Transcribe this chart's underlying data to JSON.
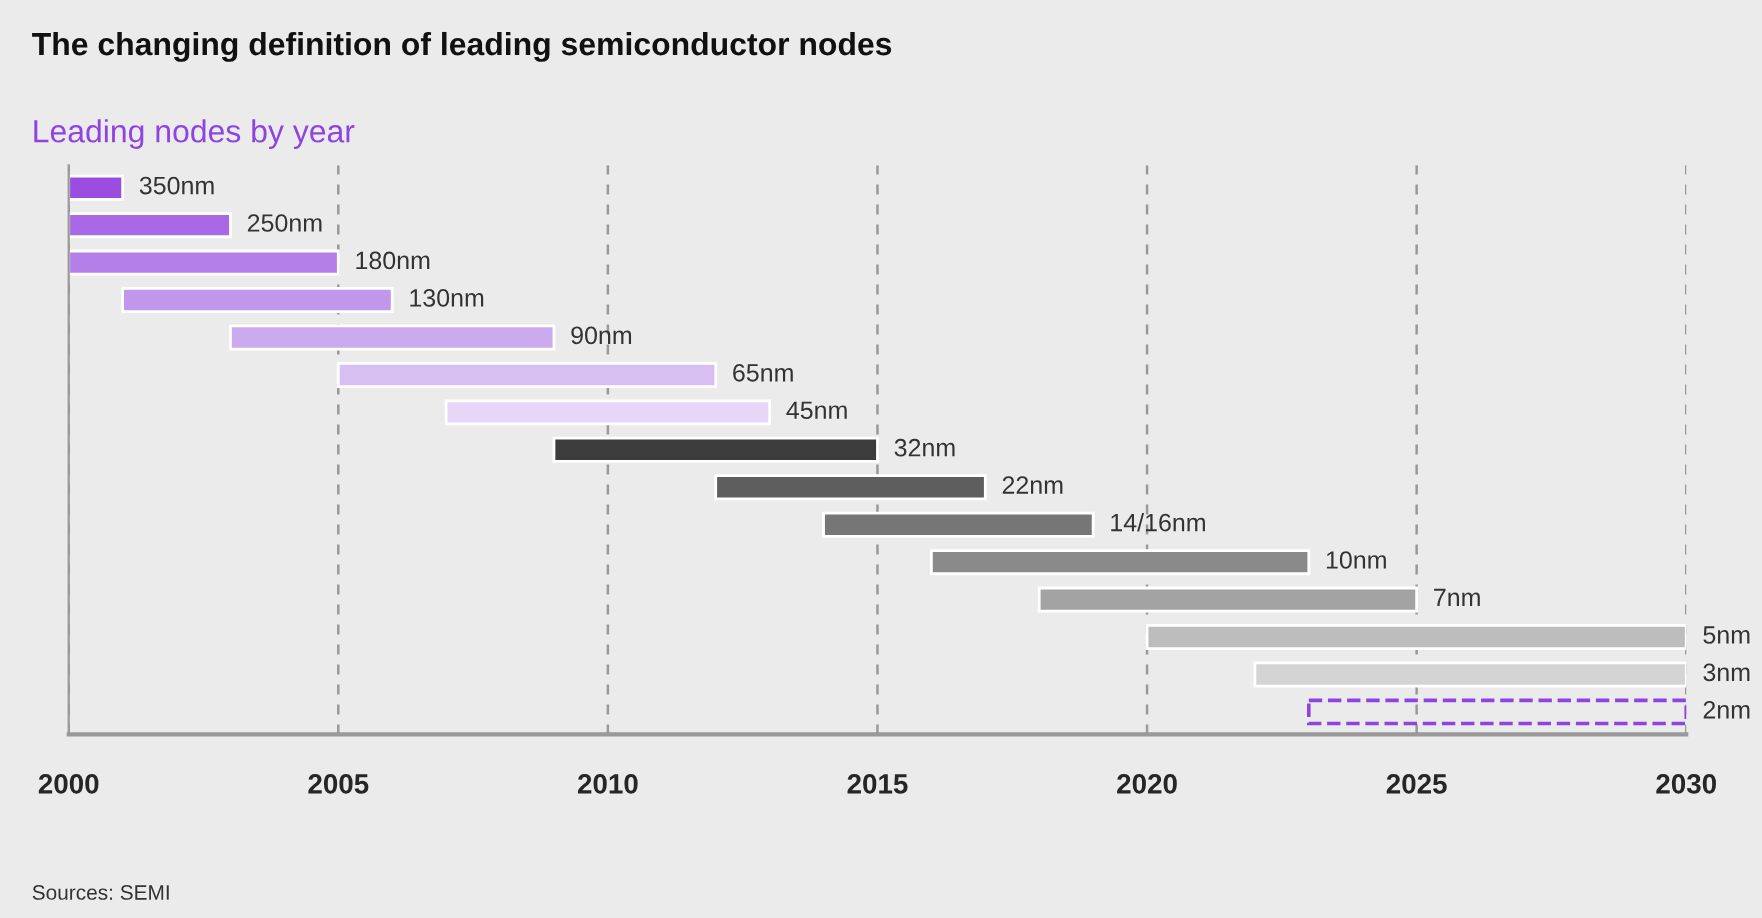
{
  "chart_data": {
    "type": "bar",
    "orientation": "horizontal",
    "title": "The changing definition of leading semiconductor nodes",
    "subtitle": "Leading nodes by year",
    "categories": [
      "350nm",
      "250nm",
      "180nm",
      "130nm",
      "90nm",
      "65nm",
      "45nm",
      "32nm",
      "22nm",
      "14/16nm",
      "10nm",
      "7nm",
      "5nm",
      "3nm",
      "2nm"
    ],
    "series": [
      {
        "base": [
          2000,
          2000,
          2000,
          2001,
          2003,
          2005,
          2007,
          2009,
          2012,
          2014,
          2016,
          2018,
          2020,
          2022,
          null
        ],
        "values": [
          1,
          3,
          5,
          5,
          6,
          7,
          6,
          6,
          5,
          5,
          7,
          7,
          10,
          8,
          null
        ],
        "colors": [
          "#9b4de0",
          "#a968e6",
          "#b57fe9",
          "#c197ec",
          "#ccaaf0",
          "#d8bff3",
          "#e6d6f7",
          "#3c3c3c",
          "#5e5e5e",
          "#767676",
          "#8a8a8a",
          "#a3a3a3",
          "#bdbdbd",
          "#d4d4d4",
          "#8e44e0"
        ]
      },
      {
        "base": [
          null,
          null,
          null,
          null,
          null,
          null,
          null,
          null,
          null,
          null,
          null,
          null,
          null,
          null,
          2023
        ],
        "values": [
          null,
          null,
          null,
          null,
          null,
          null,
          null,
          null,
          null,
          null,
          null,
          null,
          null,
          null,
          7
        ],
        "color": "#8e44e0",
        "line_style": "dashed"
      }
    ],
    "xlim": [
      2000,
      2030
    ],
    "xticks": [
      2000,
      2005,
      2010,
      2015,
      2020,
      2025,
      2030
    ],
    "grid": "x",
    "tick_labels": "x",
    "annotations": [
      "Sources: SEMI"
    ]
  }
}
